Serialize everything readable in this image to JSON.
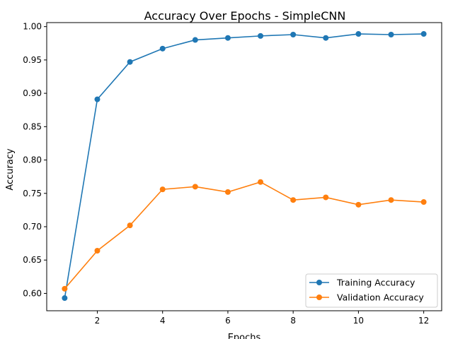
{
  "chart_data": {
    "type": "line",
    "title": "Accuracy Over Epochs - SimpleCNN",
    "xlabel": "Epochs",
    "ylabel": "Accuracy",
    "xlim": [
      0.45,
      12.55
    ],
    "ylim": [
      0.574,
      1.006
    ],
    "xticks": [
      2,
      4,
      6,
      8,
      10,
      12
    ],
    "xtick_labels": [
      "2",
      "4",
      "6",
      "8",
      "10",
      "12"
    ],
    "yticks": [
      0.6,
      0.65,
      0.7,
      0.75,
      0.8,
      0.85,
      0.9,
      0.95,
      1.0
    ],
    "ytick_labels": [
      "0.60",
      "0.65",
      "0.70",
      "0.75",
      "0.80",
      "0.85",
      "0.90",
      "0.95",
      "1.00"
    ],
    "grid": false,
    "legend_position": "lower-right",
    "x": [
      1,
      2,
      3,
      4,
      5,
      6,
      7,
      8,
      9,
      10,
      11,
      12
    ],
    "series": [
      {
        "name": "Training Accuracy",
        "color": "#1f77b4",
        "marker": "circle",
        "values": [
          0.593,
          0.891,
          0.947,
          0.967,
          0.98,
          0.983,
          0.986,
          0.988,
          0.983,
          0.989,
          0.988,
          0.989
        ]
      },
      {
        "name": "Validation Accuracy",
        "color": "#ff7f0e",
        "marker": "circle",
        "values": [
          0.607,
          0.664,
          0.702,
          0.756,
          0.76,
          0.752,
          0.767,
          0.74,
          0.744,
          0.733,
          0.74,
          0.737
        ]
      }
    ]
  }
}
